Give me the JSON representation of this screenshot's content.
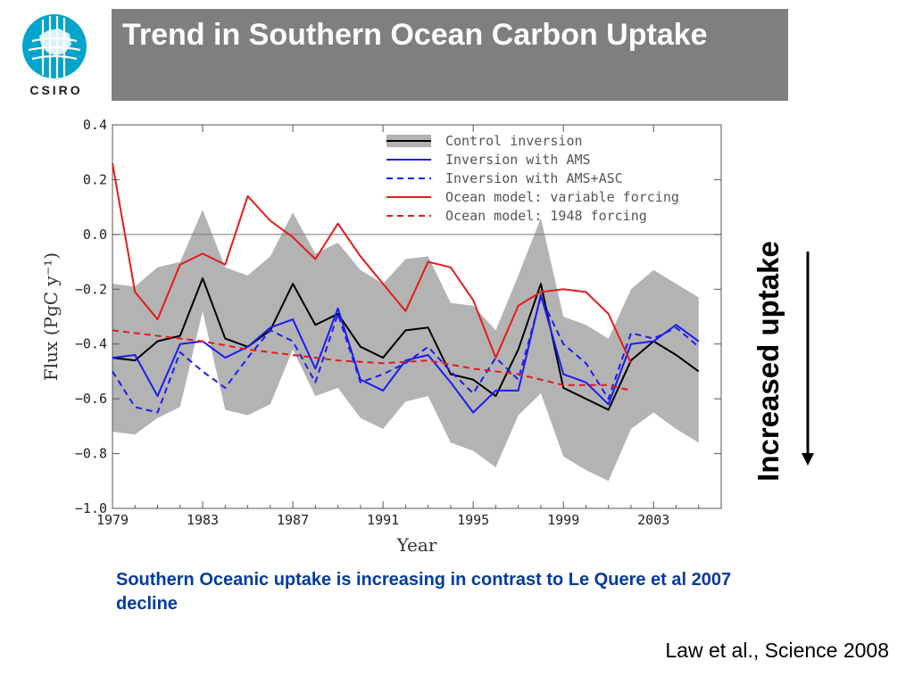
{
  "logo": {
    "text": "CSIRO",
    "icon": "csiro-globe-icon",
    "color": "#00a4cc"
  },
  "title": "Trend in Southern Ocean Carbon Uptake",
  "side_label": "Increased uptake",
  "caption": "Southern Oceanic uptake is increasing in contrast to Le Quere et al 2007 decline",
  "citation": "Law et al., Science 2008",
  "chart_data": {
    "type": "line",
    "xlabel": "Year",
    "ylabel": "Flux (PgC y⁻¹)",
    "xlim": [
      1979,
      2006
    ],
    "ylim": [
      -1.0,
      0.4
    ],
    "xticks": [
      1979,
      1983,
      1987,
      1991,
      1995,
      1999,
      2003
    ],
    "yticks": [
      0.4,
      0.2,
      0.0,
      -0.2,
      -0.4,
      -0.6,
      -0.8,
      -1.0
    ],
    "ytick_labels": [
      "0.4",
      "0.2",
      "0.0",
      "−0.2",
      "−0.4",
      "−0.6",
      "−0.8",
      "−1.0"
    ],
    "grid": false,
    "legend_position": "top-right",
    "band": {
      "x": [
        1979,
        1980,
        1981,
        1982,
        1983,
        1984,
        1985,
        1986,
        1987,
        1988,
        1989,
        1990,
        1991,
        1992,
        1993,
        1994,
        1995,
        1996,
        1997,
        1998,
        1999,
        2000,
        2001,
        2002,
        2003,
        2004,
        2005
      ],
      "upper": [
        -0.18,
        -0.19,
        -0.12,
        -0.1,
        0.09,
        -0.12,
        -0.15,
        -0.08,
        0.08,
        -0.07,
        -0.03,
        -0.13,
        -0.18,
        -0.09,
        -0.08,
        -0.25,
        -0.26,
        -0.35,
        -0.15,
        0.06,
        -0.3,
        -0.33,
        -0.38,
        -0.2,
        -0.13,
        -0.18,
        -0.23
      ],
      "lower": [
        -0.72,
        -0.73,
        -0.67,
        -0.63,
        -0.28,
        -0.64,
        -0.66,
        -0.62,
        -0.42,
        -0.59,
        -0.56,
        -0.67,
        -0.71,
        -0.61,
        -0.59,
        -0.76,
        -0.79,
        -0.85,
        -0.66,
        -0.58,
        -0.81,
        -0.86,
        -0.9,
        -0.71,
        -0.65,
        -0.71,
        -0.76
      ],
      "color": "#b3b3b3"
    },
    "series": [
      {
        "name": "Control inversion",
        "color": "#000000",
        "dash": "solid",
        "x": [
          1979,
          1980,
          1981,
          1982,
          1983,
          1984,
          1985,
          1986,
          1987,
          1988,
          1989,
          1990,
          1991,
          1992,
          1993,
          1994,
          1995,
          1996,
          1997,
          1998,
          1999,
          2000,
          2001,
          2002,
          2003,
          2004,
          2005
        ],
        "values": [
          -0.45,
          -0.46,
          -0.39,
          -0.37,
          -0.16,
          -0.38,
          -0.41,
          -0.35,
          -0.18,
          -0.33,
          -0.29,
          -0.41,
          -0.45,
          -0.35,
          -0.34,
          -0.51,
          -0.53,
          -0.59,
          -0.42,
          -0.18,
          -0.56,
          -0.6,
          -0.64,
          -0.46,
          -0.39,
          -0.44,
          -0.5
        ]
      },
      {
        "name": "Inversion with AMS",
        "color": "#1c1cf0",
        "dash": "solid",
        "x": [
          1979,
          1980,
          1981,
          1982,
          1983,
          1984,
          1985,
          1986,
          1987,
          1988,
          1989,
          1990,
          1991,
          1992,
          1993,
          1994,
          1995,
          1996,
          1997,
          1998,
          1999,
          2000,
          2001,
          2002,
          2003,
          2004,
          2005
        ],
        "values": [
          -0.45,
          -0.44,
          -0.59,
          -0.4,
          -0.39,
          -0.45,
          -0.41,
          -0.34,
          -0.31,
          -0.49,
          -0.27,
          -0.53,
          -0.57,
          -0.46,
          -0.44,
          -0.54,
          -0.65,
          -0.57,
          -0.57,
          -0.22,
          -0.51,
          -0.54,
          -0.62,
          -0.4,
          -0.39,
          -0.33,
          -0.39
        ]
      },
      {
        "name": "Inversion with AMS+ASC",
        "color": "#1c1cf0",
        "dash": "dashed",
        "x": [
          1979,
          1980,
          1981,
          1982,
          1983,
          1984,
          1985,
          1986,
          1987,
          1988,
          1989,
          1990,
          1991,
          1992,
          1993,
          1994,
          1995,
          1996,
          1997,
          1998,
          1999,
          2000,
          2001,
          2002,
          2003,
          2004,
          2005
        ],
        "values": [
          -0.5,
          -0.63,
          -0.65,
          -0.43,
          -0.5,
          -0.56,
          -0.45,
          -0.35,
          -0.39,
          -0.54,
          -0.29,
          -0.54,
          -0.51,
          -0.47,
          -0.41,
          -0.5,
          -0.58,
          -0.45,
          -0.53,
          -0.23,
          -0.4,
          -0.47,
          -0.6,
          -0.36,
          -0.38,
          -0.34,
          -0.41
        ]
      },
      {
        "name": "Ocean model: variable forcing",
        "color": "#e8191a",
        "dash": "solid",
        "x": [
          1979,
          1980,
          1981,
          1982,
          1983,
          1984,
          1985,
          1986,
          1987,
          1988,
          1989,
          1990,
          1991,
          1992,
          1993,
          1994,
          1995,
          1996,
          1997,
          1998,
          1999,
          2000,
          2001,
          2002
        ],
        "values": [
          0.26,
          -0.21,
          -0.31,
          -0.11,
          -0.07,
          -0.11,
          0.14,
          0.05,
          -0.01,
          -0.09,
          0.04,
          -0.08,
          -0.18,
          -0.28,
          -0.1,
          -0.12,
          -0.24,
          -0.45,
          -0.26,
          -0.21,
          -0.2,
          -0.21,
          -0.29,
          -0.47
        ]
      },
      {
        "name": "Ocean model: 1948 forcing",
        "color": "#e8191a",
        "dash": "dashed",
        "x": [
          1979,
          1981,
          1983,
          1985,
          1987,
          1989,
          1991,
          1993,
          1995,
          1997,
          1999,
          2001,
          2002
        ],
        "values": [
          -0.35,
          -0.37,
          -0.39,
          -0.42,
          -0.44,
          -0.46,
          -0.47,
          -0.46,
          -0.49,
          -0.51,
          -0.55,
          -0.55,
          -0.57
        ]
      }
    ]
  }
}
